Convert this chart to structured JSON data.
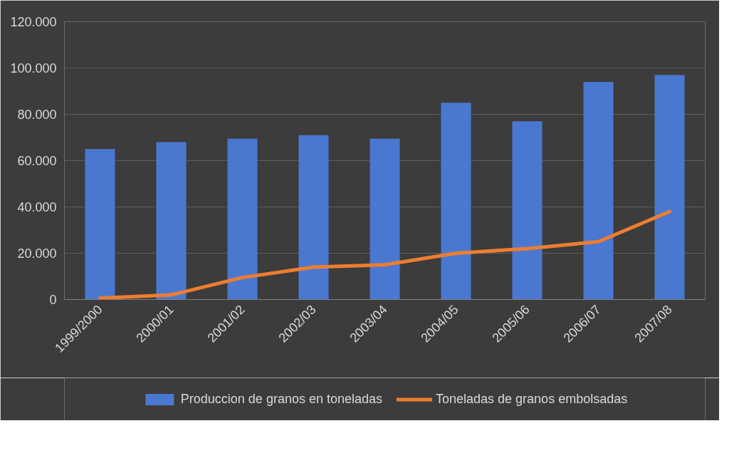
{
  "chart_data": {
    "type": "bar",
    "categories": [
      "1999/2000",
      "2000/01",
      "2001/02",
      "2002/03",
      "2003/04",
      "2004/05",
      "2005/06",
      "2006/07",
      "2007/08"
    ],
    "series": [
      {
        "name": "Produccion de granos en toneladas",
        "color": "#4a78d0",
        "values": [
          65000,
          68000,
          69500,
          71000,
          69500,
          85000,
          77000,
          94000,
          97000
        ]
      },
      {
        "name": "Toneladas de granos embolsadas",
        "type": "line",
        "color": "#ed7d31",
        "values": [
          600,
          2000,
          9500,
          14000,
          15000,
          20000,
          22000,
          25000,
          38000
        ]
      }
    ],
    "ylim": [
      0,
      120000
    ],
    "yticks": [
      {
        "value": 0,
        "label": "0"
      },
      {
        "value": 20000,
        "label": "20.000"
      },
      {
        "value": 40000,
        "label": "40.000"
      },
      {
        "value": 60000,
        "label": "60.000"
      },
      {
        "value": 80000,
        "label": "80.000"
      },
      {
        "value": 100000,
        "label": "100.000"
      },
      {
        "value": 120000,
        "label": "120.000"
      }
    ],
    "grid": "y",
    "legend": "bottom",
    "line_style": "solid",
    "marker": "none"
  }
}
